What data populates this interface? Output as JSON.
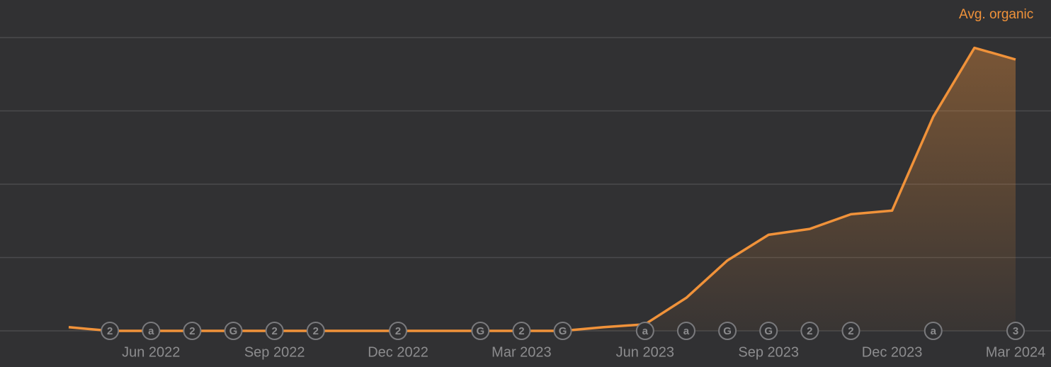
{
  "chart_data": {
    "type": "line",
    "categories": [
      null,
      null,
      "Jun 2022",
      null,
      null,
      "Sep 2022",
      null,
      null,
      "Dec 2022",
      null,
      null,
      "Mar 2023",
      null,
      null,
      "Jun 2023",
      null,
      null,
      "Sep 2023",
      null,
      null,
      "Dec 2023",
      null,
      null,
      "Mar 2024"
    ],
    "series": [
      {
        "name": "Avg. organic",
        "color": "#f0923a",
        "values": [
          0.05,
          0,
          0,
          0,
          0,
          0,
          0,
          0,
          0,
          0,
          0,
          0,
          0,
          0.05,
          0.09,
          0.45,
          0.96,
          1.31,
          1.39,
          1.59,
          1.64,
          2.92,
          3.86,
          3.7
        ]
      }
    ],
    "ylim": [
      0,
      4
    ],
    "yticks": [
      0,
      1,
      2,
      3,
      4
    ],
    "grid": true,
    "show_ytick_labels": false,
    "area": true,
    "legend": "top-right",
    "annotations": [
      {
        "index": 1,
        "label": "2"
      },
      {
        "index": 2,
        "label": "a"
      },
      {
        "index": 3,
        "label": "2"
      },
      {
        "index": 4,
        "label": "G"
      },
      {
        "index": 5,
        "label": "2"
      },
      {
        "index": 6,
        "label": "2"
      },
      {
        "index": 8,
        "label": "2"
      },
      {
        "index": 10,
        "label": "G"
      },
      {
        "index": 11,
        "label": "2"
      },
      {
        "index": 12,
        "label": "G"
      },
      {
        "index": 14,
        "label": "a"
      },
      {
        "index": 15,
        "label": "a"
      },
      {
        "index": 16,
        "label": "G"
      },
      {
        "index": 17,
        "label": "G"
      },
      {
        "index": 18,
        "label": "2"
      },
      {
        "index": 19,
        "label": "2"
      },
      {
        "index": 21,
        "label": "a"
      },
      {
        "index": 23,
        "label": "3"
      }
    ]
  }
}
